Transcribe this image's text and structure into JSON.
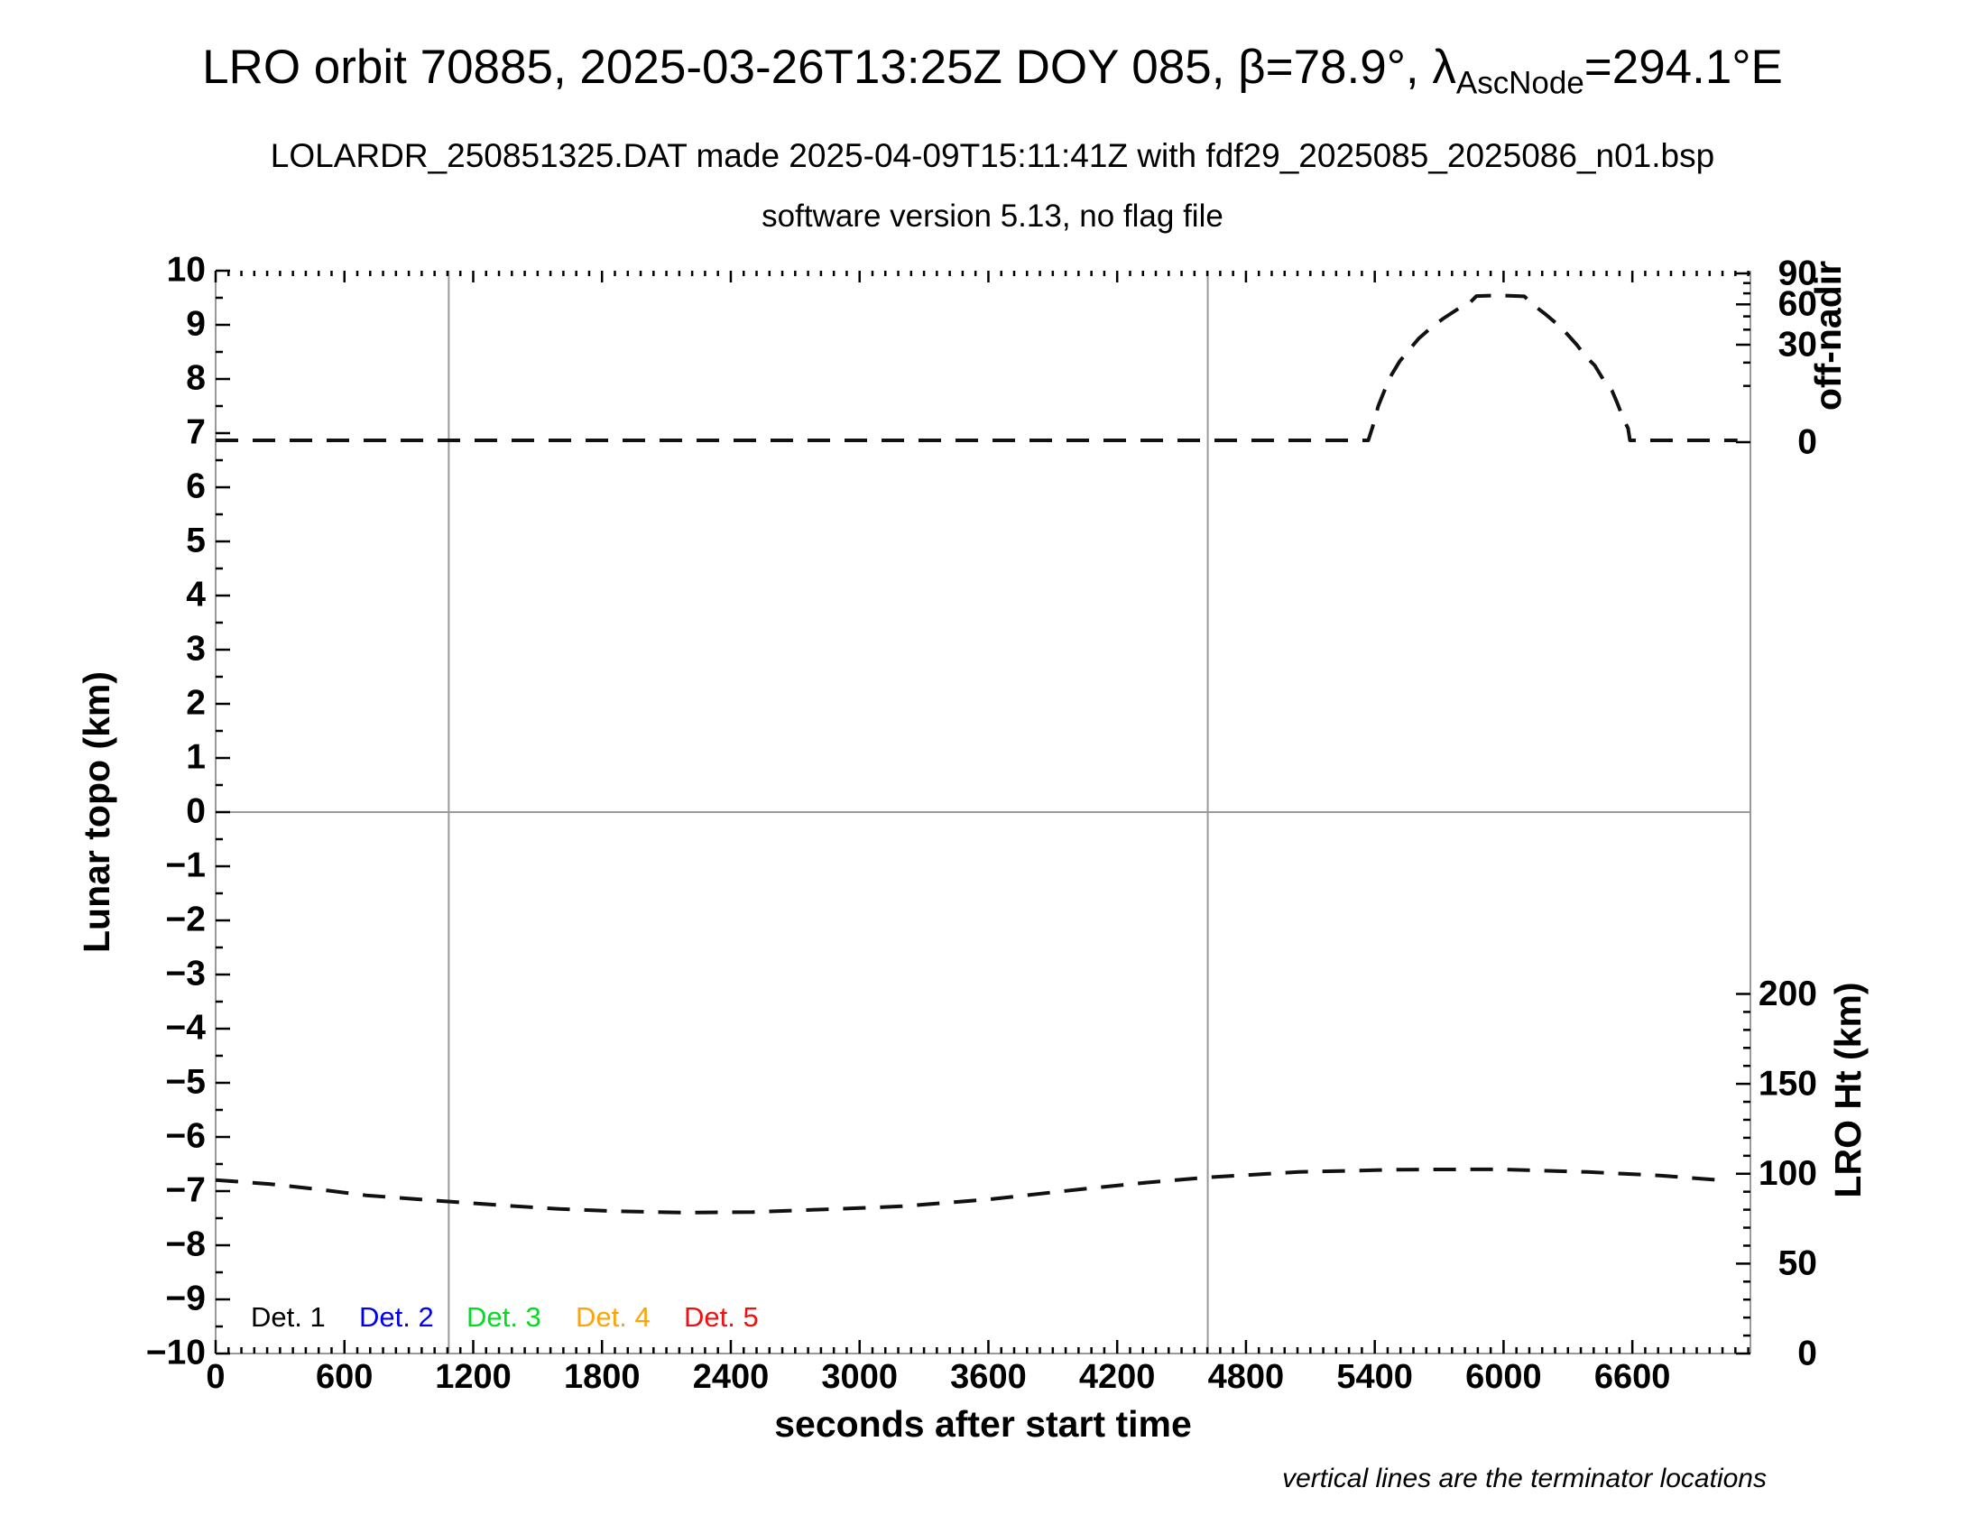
{
  "title": {
    "part1": "LRO orbit 70885, 2025-03-26T13:25Z DOY 085, β=78.9°, λ",
    "subscript": "AscNode",
    "part2": "=294.1°E"
  },
  "subtitle": "LOLARDR_250851325.DAT made 2025-04-09T15:11:41Z with fdf29_2025085_2025086_n01.bsp",
  "subtitle2": "software version 5.13, no flag file",
  "footnote": "vertical lines are the terminator locations",
  "colors": {
    "axis_line": "#999999",
    "grid_line": "#9a9a9a",
    "terminator_line": "#9a9a9a",
    "tick": "#000000",
    "curve": "#111111",
    "legend": [
      "#000000",
      "#0000ee",
      "#00dd22",
      "#ffa408",
      "#ee1111"
    ]
  },
  "chart_data": {
    "type": "line",
    "title": "LRO orbit 70885, 2025-03-26T13:25Z DOY 085, β=78.9°, λAscNode=294.1°E",
    "xlabel": "seconds after start time",
    "x_axis": {
      "min": 0,
      "max": 7150,
      "major_step": 600,
      "minor_step": 60,
      "tick_labels": [
        "0",
        "600",
        "1200",
        "1800",
        "2400",
        "3000",
        "3600",
        "4200",
        "4800",
        "5400",
        "6000",
        "6600"
      ]
    },
    "y_left": {
      "label": "Lunar topo (km)",
      "min": -10,
      "max": 10,
      "major_step": 1,
      "minor_step": 0.5
    },
    "y_right_top": {
      "label": "off-nadir",
      "scale": "sqrt",
      "major_ticks": [
        90,
        60,
        30,
        0
      ],
      "minor_ticks": [
        10,
        20,
        40,
        50,
        70,
        80
      ]
    },
    "y_right_bottom": {
      "label": "LRO Ht (km)",
      "min": 0,
      "max": 200,
      "major_ticks": [
        200,
        150,
        100,
        50,
        0
      ],
      "minor_step": 10
    },
    "grid_y_zero": 0,
    "terminators_seconds": [
      1086,
      4622
    ],
    "legend": [
      {
        "label": "Det. 1",
        "color_index": 0
      },
      {
        "label": "Det. 2",
        "color_index": 1
      },
      {
        "label": "Det. 3",
        "color_index": 2
      },
      {
        "label": "Det. 4",
        "color_index": 3
      },
      {
        "label": "Det. 5",
        "color_index": 4
      }
    ],
    "series": [
      {
        "name": "off-nadir angle (deg)",
        "axis": "right_top",
        "style": "dashed",
        "peak_deg": 68,
        "points": [
          [
            0,
            0.01
          ],
          [
            5370,
            0.01
          ],
          [
            5391,
            0.8
          ],
          [
            5416,
            4.1
          ],
          [
            5445,
            8.4
          ],
          [
            5479,
            14.5
          ],
          [
            5517,
            20.8
          ],
          [
            5563,
            27.3
          ],
          [
            5605,
            34.0
          ],
          [
            5668,
            42.2
          ],
          [
            5719,
            48.3
          ],
          [
            5790,
            56.4
          ],
          [
            5845,
            61.8
          ],
          [
            5874,
            67.5
          ],
          [
            5979,
            68.1
          ],
          [
            6097,
            67.2
          ],
          [
            6139,
            59.5
          ],
          [
            6194,
            51.9
          ],
          [
            6244,
            44.8
          ],
          [
            6295,
            37.1
          ],
          [
            6341,
            30.0
          ],
          [
            6383,
            23.2
          ],
          [
            6425,
            18.6
          ],
          [
            6463,
            12.6
          ],
          [
            6505,
            8.4
          ],
          [
            6530,
            4.8
          ],
          [
            6560,
            1.6
          ],
          [
            6580,
            0.6
          ],
          [
            6589,
            0.01
          ],
          [
            7090,
            0.01
          ]
        ]
      },
      {
        "name": "LRO height (km)",
        "axis": "right_bottom",
        "style": "dashed",
        "points": [
          [
            0,
            96.5
          ],
          [
            250,
            94.3
          ],
          [
            466,
            91.5
          ],
          [
            700,
            88.0
          ],
          [
            1097,
            84.4
          ],
          [
            1350,
            82.3
          ],
          [
            1601,
            80.4
          ],
          [
            1850,
            79.2
          ],
          [
            2189,
            78.4
          ],
          [
            2500,
            78.7
          ],
          [
            2777,
            79.9
          ],
          [
            3000,
            80.9
          ],
          [
            3197,
            81.9
          ],
          [
            3618,
            85.9
          ],
          [
            4038,
            91.5
          ],
          [
            4330,
            95.0
          ],
          [
            4626,
            98.0
          ],
          [
            5046,
            101.0
          ],
          [
            5508,
            102.3
          ],
          [
            5970,
            102.5
          ],
          [
            6391,
            101.0
          ],
          [
            6727,
            99.0
          ],
          [
            7000,
            96.5
          ]
        ]
      }
    ]
  }
}
